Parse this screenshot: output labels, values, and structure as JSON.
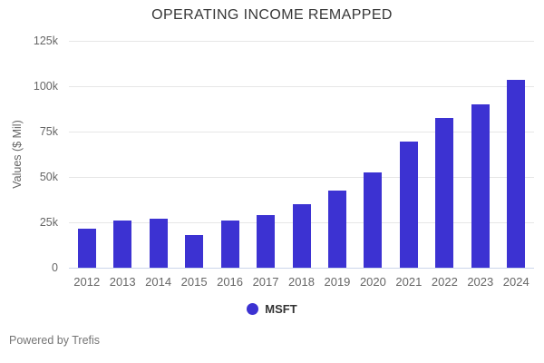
{
  "title": "OPERATING INCOME REMAPPED",
  "footer": "Powered by Trefis",
  "legend": {
    "items": [
      {
        "label": "MSFT"
      }
    ]
  },
  "colors": {
    "bar": "#3c32d2",
    "grid": "#e6e6e6",
    "baseline": "#ccd6eb",
    "text_muted": "#666666",
    "title_text": "#373737"
  },
  "chart_data": {
    "type": "bar",
    "title": "OPERATING INCOME REMAPPED",
    "xlabel": "",
    "ylabel": "Values ($ Mil)",
    "categories": [
      "2012",
      "2013",
      "2014",
      "2015",
      "2016",
      "2017",
      "2018",
      "2019",
      "2020",
      "2021",
      "2022",
      "2023",
      "2024"
    ],
    "series": [
      {
        "name": "MSFT",
        "values": [
          21500,
          26000,
          27000,
          18000,
          26000,
          29000,
          35000,
          42500,
          52500,
          69500,
          82500,
          90000,
          103500
        ]
      }
    ],
    "ylim": [
      0,
      125000
    ],
    "yticks": [
      {
        "value": 0,
        "label": "0"
      },
      {
        "value": 25000,
        "label": "25k"
      },
      {
        "value": 50000,
        "label": "50k"
      },
      {
        "value": 75000,
        "label": "75k"
      },
      {
        "value": 100000,
        "label": "100k"
      },
      {
        "value": 125000,
        "label": "125k"
      }
    ],
    "grid": "horizontal",
    "legend_position": "bottom"
  }
}
